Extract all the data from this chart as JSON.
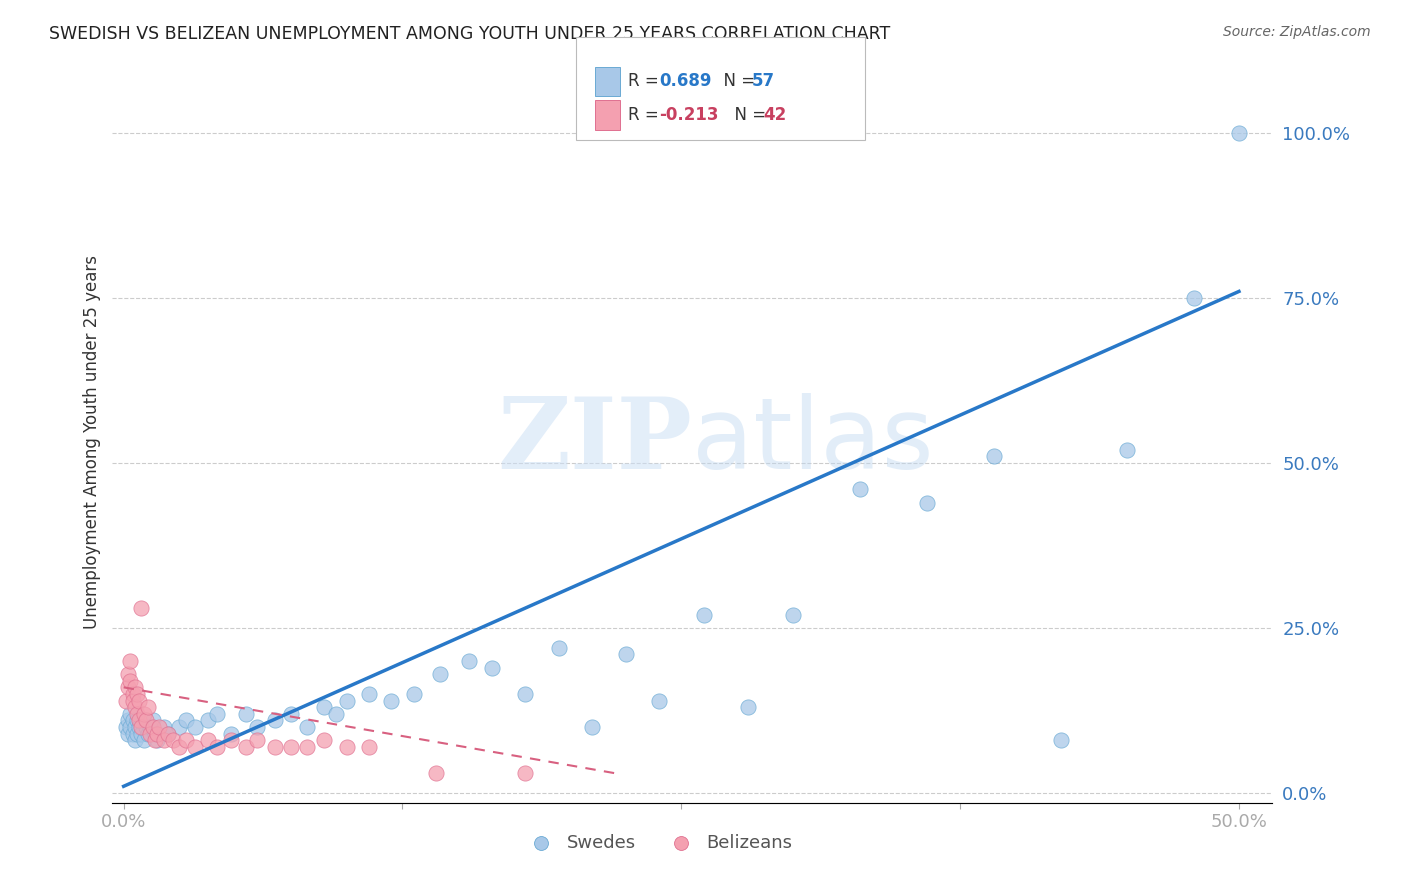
{
  "title": "SWEDISH VS BELIZEAN UNEMPLOYMENT AMONG YOUTH UNDER 25 YEARS CORRELATION CHART",
  "source": "Source: ZipAtlas.com",
  "ylabel": "Unemployment Among Youth under 25 years",
  "xlim": [
    -0.005,
    0.515
  ],
  "ylim": [
    -0.015,
    1.08
  ],
  "xtick_vals": [
    0.0,
    0.125,
    0.25,
    0.375,
    0.5
  ],
  "xtick_labels": [
    "0.0%",
    "",
    "",
    "",
    "50.0%"
  ],
  "ytick_vals": [
    0.0,
    0.25,
    0.5,
    0.75,
    1.0
  ],
  "ytick_labels": [
    "0.0%",
    "25.0%",
    "50.0%",
    "75.0%",
    "100.0%"
  ],
  "swedes_color": "#a8c8e8",
  "swedes_edge": "#6aaad4",
  "belizeans_color": "#f4a0b0",
  "belizeans_edge": "#e07090",
  "blue_line_color": "#2878c8",
  "pink_line_color": "#d86080",
  "R_swedes": 0.689,
  "N_swedes": 57,
  "R_belizeans": -0.213,
  "N_belizeans": 42,
  "watermark": "ZIPatlas",
  "swedes_x": [
    0.001,
    0.002,
    0.002,
    0.003,
    0.003,
    0.004,
    0.004,
    0.005,
    0.005,
    0.006,
    0.006,
    0.007,
    0.008,
    0.009,
    0.01,
    0.011,
    0.012,
    0.013,
    0.014,
    0.015,
    0.018,
    0.02,
    0.025,
    0.028,
    0.032,
    0.038,
    0.042,
    0.048,
    0.055,
    0.06,
    0.068,
    0.075,
    0.082,
    0.09,
    0.095,
    0.1,
    0.11,
    0.12,
    0.13,
    0.142,
    0.155,
    0.165,
    0.18,
    0.195,
    0.21,
    0.225,
    0.24,
    0.26,
    0.28,
    0.3,
    0.33,
    0.36,
    0.39,
    0.42,
    0.45,
    0.48,
    0.5
  ],
  "swedes_y": [
    0.1,
    0.11,
    0.09,
    0.1,
    0.12,
    0.09,
    0.11,
    0.1,
    0.08,
    0.09,
    0.11,
    0.1,
    0.09,
    0.08,
    0.1,
    0.09,
    0.1,
    0.11,
    0.09,
    0.08,
    0.1,
    0.09,
    0.1,
    0.11,
    0.1,
    0.11,
    0.12,
    0.09,
    0.12,
    0.1,
    0.11,
    0.12,
    0.1,
    0.13,
    0.12,
    0.14,
    0.15,
    0.14,
    0.15,
    0.18,
    0.2,
    0.19,
    0.15,
    0.22,
    0.1,
    0.21,
    0.14,
    0.27,
    0.13,
    0.27,
    0.46,
    0.44,
    0.51,
    0.08,
    0.52,
    0.75,
    1.0
  ],
  "belizeans_x": [
    0.001,
    0.002,
    0.002,
    0.003,
    0.003,
    0.004,
    0.004,
    0.005,
    0.005,
    0.006,
    0.006,
    0.007,
    0.007,
    0.008,
    0.008,
    0.009,
    0.01,
    0.011,
    0.012,
    0.013,
    0.014,
    0.015,
    0.016,
    0.018,
    0.02,
    0.022,
    0.025,
    0.028,
    0.032,
    0.038,
    0.042,
    0.048,
    0.055,
    0.06,
    0.068,
    0.075,
    0.082,
    0.09,
    0.1,
    0.11,
    0.14,
    0.18
  ],
  "belizeans_y": [
    0.14,
    0.16,
    0.18,
    0.2,
    0.17,
    0.15,
    0.14,
    0.13,
    0.16,
    0.15,
    0.12,
    0.14,
    0.11,
    0.1,
    0.28,
    0.12,
    0.11,
    0.13,
    0.09,
    0.1,
    0.08,
    0.09,
    0.1,
    0.08,
    0.09,
    0.08,
    0.07,
    0.08,
    0.07,
    0.08,
    0.07,
    0.08,
    0.07,
    0.08,
    0.07,
    0.07,
    0.07,
    0.08,
    0.07,
    0.07,
    0.03,
    0.03
  ],
  "blue_line_x": [
    0.0,
    0.5
  ],
  "blue_line_y": [
    0.01,
    0.76
  ],
  "pink_line_x": [
    0.0,
    0.22
  ],
  "pink_line_y": [
    0.16,
    0.03
  ]
}
